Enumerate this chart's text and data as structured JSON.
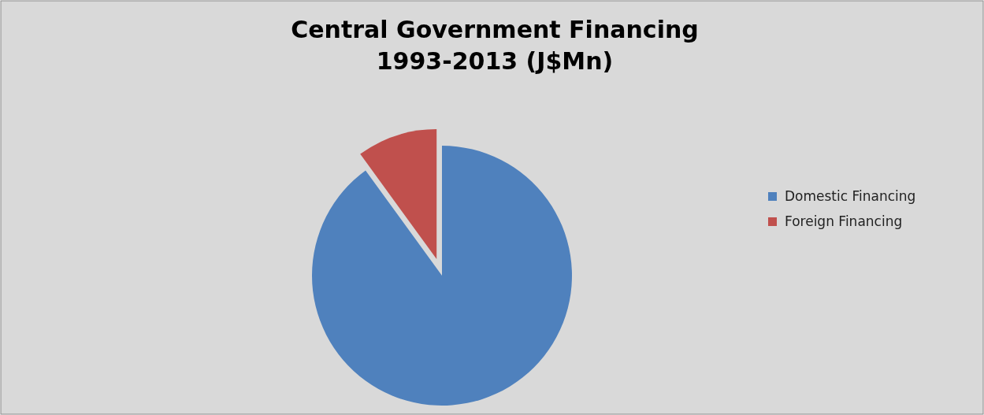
{
  "chart_data": {
    "type": "pie",
    "title": "Central Government  Financing\n1993-2013 (J$Mn)",
    "categories": [
      "Domestic Financing",
      "Foreign Financing"
    ],
    "values": [
      90,
      10
    ],
    "colors": [
      "#4f81bd",
      "#c0504d"
    ],
    "legend": "right"
  }
}
